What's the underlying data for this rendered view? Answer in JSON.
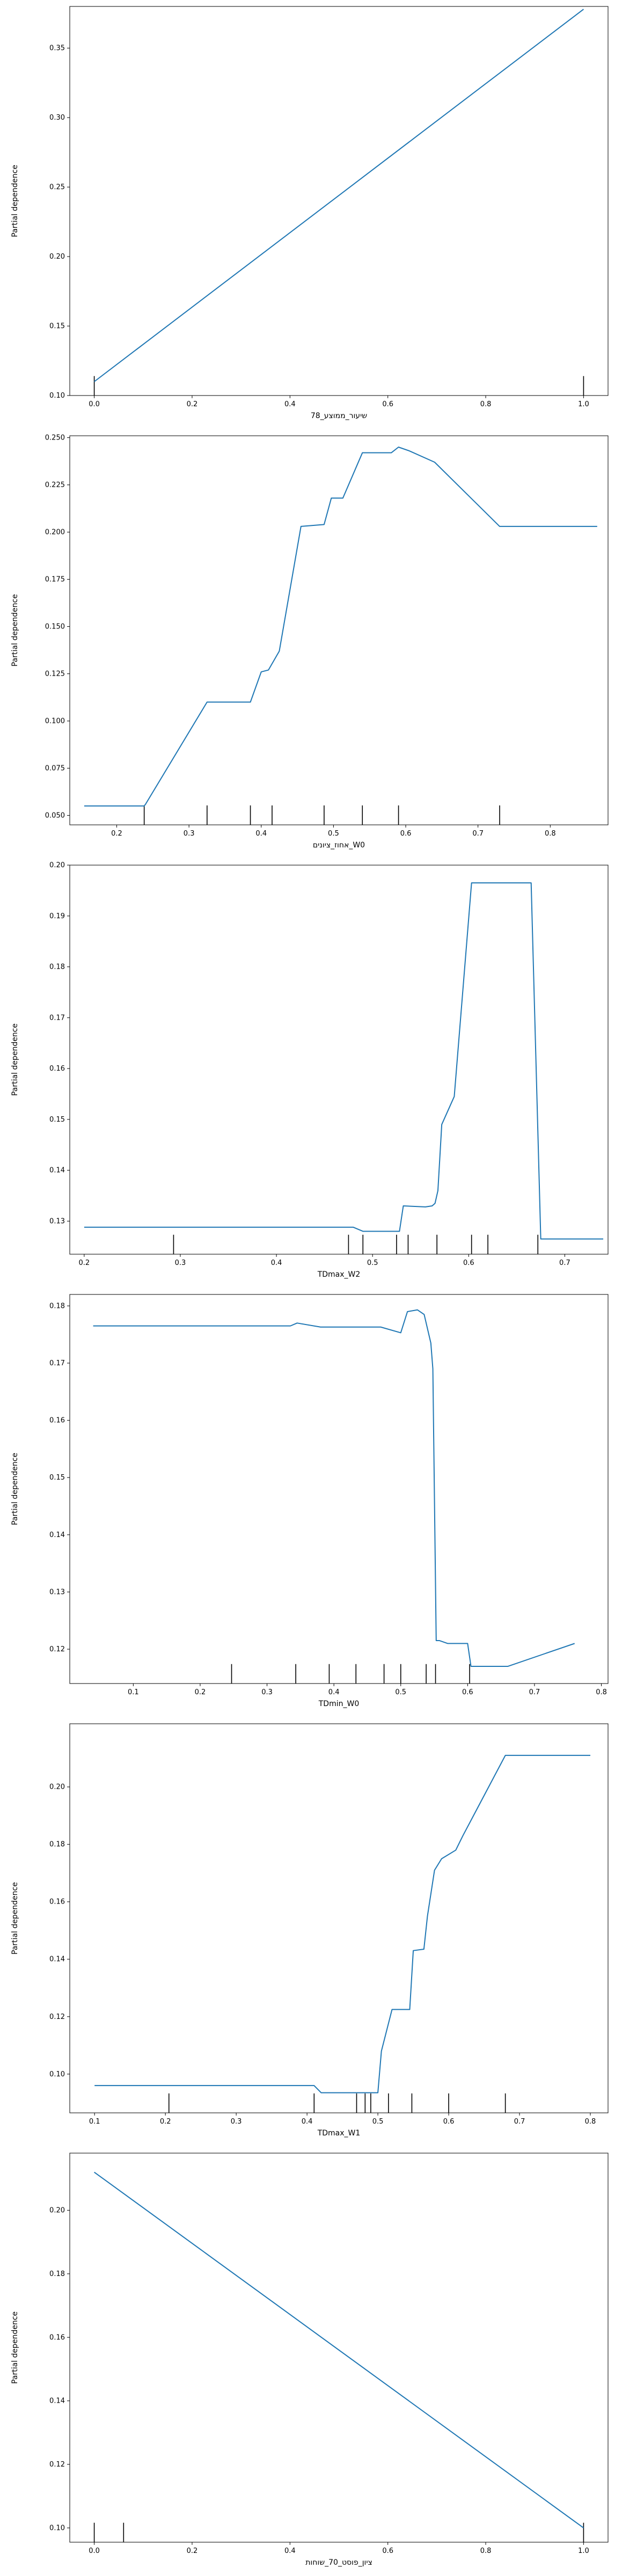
{
  "line_color": "#1f77b4",
  "chart_data": [
    {
      "type": "line",
      "xlabel": "שיעור_ממוצע_78",
      "ylabel": "Partial dependence",
      "xlim": [
        -0.05,
        1.05
      ],
      "ylim": [
        0.1,
        0.38
      ],
      "xticks": [
        0.0,
        0.2,
        0.4,
        0.6,
        0.8,
        1.0
      ],
      "yticks": [
        0.1,
        0.15,
        0.2,
        0.25,
        0.3,
        0.35
      ],
      "x": [
        0.0,
        1.0
      ],
      "y": [
        0.11,
        0.378
      ],
      "deciles": [
        0.0,
        1.0
      ]
    },
    {
      "type": "line",
      "xlabel": "אחוז_ציונים_W0",
      "ylabel": "Partial dependence",
      "xlim": [
        0.135,
        0.88
      ],
      "ylim": [
        0.045,
        0.251
      ],
      "xticks": [
        0.2,
        0.3,
        0.4,
        0.5,
        0.6,
        0.7,
        0.8
      ],
      "yticks": [
        0.05,
        0.075,
        0.1,
        0.125,
        0.15,
        0.175,
        0.2,
        0.225,
        0.25
      ],
      "x": [
        0.155,
        0.238,
        0.24,
        0.325,
        0.385,
        0.4,
        0.41,
        0.425,
        0.455,
        0.487,
        0.497,
        0.513,
        0.54,
        0.58,
        0.59,
        0.605,
        0.64,
        0.73,
        0.865
      ],
      "y": [
        0.055,
        0.055,
        0.056,
        0.11,
        0.11,
        0.126,
        0.127,
        0.137,
        0.203,
        0.204,
        0.218,
        0.218,
        0.242,
        0.242,
        0.245,
        0.243,
        0.237,
        0.203,
        0.203
      ],
      "deciles": [
        0.238,
        0.325,
        0.385,
        0.415,
        0.487,
        0.54,
        0.59,
        0.73
      ]
    },
    {
      "type": "line",
      "xlabel": "TDmax_W2",
      "ylabel": "Partial dependence",
      "xlim": [
        0.185,
        0.745
      ],
      "ylim": [
        0.1235,
        0.2
      ],
      "xticks": [
        0.2,
        0.3,
        0.4,
        0.5,
        0.6,
        0.7
      ],
      "yticks": [
        0.13,
        0.14,
        0.15,
        0.16,
        0.17,
        0.18,
        0.19,
        0.2
      ],
      "x": [
        0.2,
        0.48,
        0.485,
        0.49,
        0.5,
        0.528,
        0.532,
        0.555,
        0.562,
        0.565,
        0.568,
        0.572,
        0.585,
        0.603,
        0.665,
        0.675,
        0.74
      ],
      "y": [
        0.1288,
        0.1288,
        0.1284,
        0.128,
        0.128,
        0.128,
        0.133,
        0.1328,
        0.133,
        0.1335,
        0.136,
        0.149,
        0.1545,
        0.1965,
        0.1965,
        0.1265,
        0.1265
      ],
      "deciles": [
        0.293,
        0.475,
        0.49,
        0.525,
        0.537,
        0.567,
        0.603,
        0.62,
        0.672
      ]
    },
    {
      "type": "line",
      "xlabel": "TDmin_W0",
      "ylabel": "Partial dependence",
      "xlim": [
        0.005,
        0.81
      ],
      "ylim": [
        0.114,
        0.182
      ],
      "xticks": [
        0.1,
        0.2,
        0.3,
        0.4,
        0.5,
        0.6,
        0.7,
        0.8
      ],
      "yticks": [
        0.12,
        0.13,
        0.14,
        0.15,
        0.16,
        0.17,
        0.18
      ],
      "x": [
        0.04,
        0.335,
        0.345,
        0.38,
        0.47,
        0.5,
        0.51,
        0.525,
        0.535,
        0.545,
        0.548,
        0.553,
        0.558,
        0.57,
        0.6,
        0.605,
        0.66,
        0.76
      ],
      "y": [
        0.1765,
        0.1765,
        0.177,
        0.1763,
        0.1763,
        0.1753,
        0.179,
        0.1793,
        0.1785,
        0.1735,
        0.169,
        0.1215,
        0.1215,
        0.121,
        0.121,
        0.117,
        0.117,
        0.121
      ],
      "deciles": [
        0.247,
        0.343,
        0.393,
        0.433,
        0.475,
        0.5,
        0.538,
        0.552,
        0.603
      ]
    },
    {
      "type": "line",
      "xlabel": "TDmax_W1",
      "ylabel": "Partial dependence",
      "xlim": [
        0.065,
        0.825
      ],
      "ylim": [
        0.0865,
        0.222
      ],
      "xticks": [
        0.1,
        0.2,
        0.3,
        0.4,
        0.5,
        0.6,
        0.7,
        0.8
      ],
      "yticks": [
        0.1,
        0.12,
        0.14,
        0.16,
        0.18,
        0.2
      ],
      "x": [
        0.1,
        0.41,
        0.42,
        0.47,
        0.5,
        0.505,
        0.52,
        0.545,
        0.55,
        0.565,
        0.57,
        0.58,
        0.59,
        0.61,
        0.62,
        0.68,
        0.8
      ],
      "y": [
        0.096,
        0.096,
        0.0935,
        0.0935,
        0.0935,
        0.108,
        0.1225,
        0.1225,
        0.143,
        0.1435,
        0.155,
        0.171,
        0.175,
        0.178,
        0.183,
        0.211,
        0.211
      ],
      "deciles": [
        0.205,
        0.41,
        0.47,
        0.482,
        0.49,
        0.515,
        0.548,
        0.6,
        0.68
      ]
    },
    {
      "type": "line",
      "xlabel": "ציון_פוסט_70_שוחות",
      "ylabel": "Partial dependence",
      "xlim": [
        -0.05,
        1.05
      ],
      "ylim": [
        0.0955,
        0.218
      ],
      "xticks": [
        0.0,
        0.2,
        0.4,
        0.6,
        0.8,
        1.0
      ],
      "yticks": [
        0.1,
        0.12,
        0.14,
        0.16,
        0.18,
        0.2
      ],
      "x": [
        0.0,
        1.0
      ],
      "y": [
        0.212,
        0.1
      ],
      "deciles": [
        0.0,
        0.06,
        1.0
      ]
    }
  ]
}
